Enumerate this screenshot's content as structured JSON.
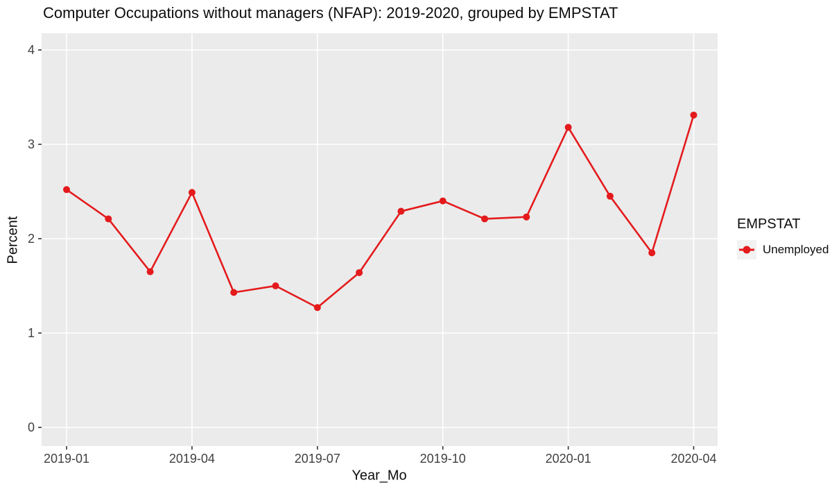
{
  "chart_data": {
    "type": "line",
    "title": "Computer Occupations without managers (NFAP): 2019-2020, grouped by EMPSTAT",
    "xlabel": "Year_Mo",
    "ylabel": "Percent",
    "x": [
      "2019-01",
      "2019-02",
      "2019-03",
      "2019-04",
      "2019-05",
      "2019-06",
      "2019-07",
      "2019-08",
      "2019-09",
      "2019-10",
      "2019-11",
      "2019-12",
      "2020-01",
      "2020-02",
      "2020-03",
      "2020-04"
    ],
    "x_tick_labels": [
      "2019-01",
      "2019-04",
      "2019-07",
      "2019-10",
      "2020-01",
      "2020-04"
    ],
    "y_ticks": [
      0,
      1,
      2,
      3,
      4
    ],
    "ylim": [
      0,
      4
    ],
    "grid": "major-only",
    "legend": {
      "title": "EMPSTAT",
      "position": "right",
      "items": [
        {
          "label": "Unemployed",
          "color": "#E41A1C"
        }
      ]
    },
    "series": [
      {
        "name": "Unemployed",
        "color": "#E41A1C",
        "values": [
          2.52,
          2.21,
          1.65,
          2.49,
          1.43,
          1.5,
          1.27,
          1.64,
          2.29,
          2.4,
          2.21,
          2.23,
          3.18,
          2.45,
          1.85,
          3.31
        ]
      }
    ],
    "colors": {
      "panel_bg": "#EBEBEB",
      "grid": "#FFFFFF",
      "tick_mark": "#333333",
      "tick_text": "#404040",
      "legend_key_bg": "#F2F2F2",
      "series_red": "#E41A1C"
    }
  }
}
